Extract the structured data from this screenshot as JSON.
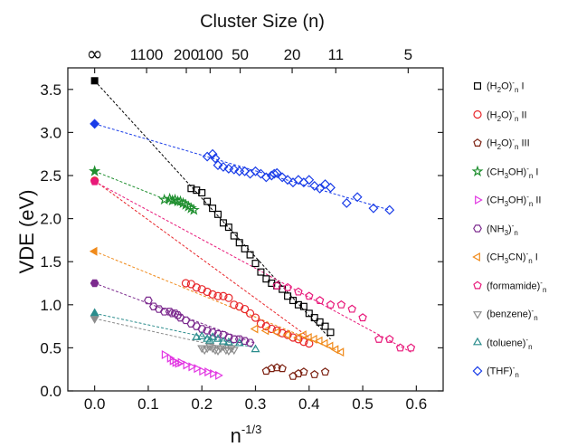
{
  "chart_data": {
    "type": "scatter",
    "title": "Cluster Size (n)",
    "xlabel": "n",
    "xlabel_superscript": "-1/3",
    "ylabel": "VDE (eV)",
    "xlim": [
      -0.05,
      0.65
    ],
    "ylim": [
      0.0,
      3.75
    ],
    "x_ticks": [
      0.0,
      0.1,
      0.2,
      0.3,
      0.4,
      0.5,
      0.6
    ],
    "x_tick_labels": [
      "0.0",
      "0.1",
      "0.2",
      "0.3",
      "0.4",
      "0.5",
      "0.6"
    ],
    "y_ticks": [
      0.0,
      0.5,
      1.0,
      1.5,
      2.0,
      2.5,
      3.0,
      3.5
    ],
    "y_tick_labels": [
      "0.0",
      "0.5",
      "1.0",
      "1.5",
      "2.0",
      "2.5",
      "3.0",
      "3.5"
    ],
    "top_axis": {
      "ticks": [
        {
          "label": "∞",
          "x": 0.0
        },
        {
          "label": "1100",
          "x": 0.0969
        },
        {
          "label": "200",
          "x": 0.171
        },
        {
          "label": "100",
          "x": 0.2154
        },
        {
          "label": "50",
          "x": 0.2714
        },
        {
          "label": "20",
          "x": 0.3684
        },
        {
          "label": "11",
          "x": 0.4498
        },
        {
          "label": "5",
          "x": 0.5848
        }
      ]
    },
    "grid": false,
    "legend_position": "right",
    "series": [
      {
        "name_html": "(H<sub>2</sub>O)<sup>-</sup><sub>n</sub> I",
        "marker": "square",
        "color": "#000000",
        "x": [
          0.18,
          0.19,
          0.2,
          0.21,
          0.22,
          0.23,
          0.24,
          0.25,
          0.26,
          0.27,
          0.28,
          0.29,
          0.3,
          0.31,
          0.32,
          0.33,
          0.34,
          0.35,
          0.36,
          0.37,
          0.38,
          0.39,
          0.4,
          0.41,
          0.42,
          0.43,
          0.44
        ],
        "y": [
          2.35,
          2.33,
          2.3,
          2.2,
          2.12,
          2.05,
          1.95,
          1.9,
          1.8,
          1.72,
          1.65,
          1.58,
          1.48,
          1.38,
          1.3,
          1.25,
          1.22,
          1.18,
          1.1,
          1.05,
          1.0,
          0.98,
          0.9,
          0.85,
          0.8,
          0.75,
          0.68
        ],
        "extrap": {
          "x": 0.0,
          "y": 3.6
        },
        "fit": [
          [
            0.0,
            3.6
          ],
          [
            0.44,
            0.6
          ]
        ]
      },
      {
        "name_html": "(H<sub>2</sub>O)<sup>-</sup><sub>n</sub> II",
        "marker": "circle",
        "color": "#e8262a",
        "x": [
          0.17,
          0.18,
          0.19,
          0.2,
          0.21,
          0.22,
          0.23,
          0.24,
          0.25,
          0.26,
          0.27,
          0.28,
          0.29,
          0.3,
          0.31,
          0.32,
          0.33,
          0.34,
          0.35,
          0.36,
          0.37,
          0.38,
          0.39,
          0.4
        ],
        "y": [
          1.25,
          1.24,
          1.2,
          1.18,
          1.15,
          1.12,
          1.1,
          1.1,
          1.08,
          1.0,
          0.98,
          0.95,
          0.9,
          0.85,
          0.78,
          0.75,
          0.72,
          0.7,
          0.67,
          0.65,
          0.62,
          0.6,
          0.57,
          0.55
        ],
        "extrap": {
          "x": 0.0,
          "y": 2.44
        },
        "fit": [
          [
            0.0,
            2.44
          ],
          [
            0.4,
            0.62
          ]
        ]
      },
      {
        "name_html": "(H<sub>2</sub>O)<sup>-</sup><sub>n</sub> III",
        "marker": "pentagon",
        "color": "#7b1f0f",
        "x": [
          0.32,
          0.33,
          0.34,
          0.35,
          0.37,
          0.38,
          0.39,
          0.41,
          0.43
        ],
        "y": [
          0.23,
          0.26,
          0.27,
          0.26,
          0.17,
          0.2,
          0.22,
          0.19,
          0.22
        ],
        "extrap": null,
        "fit": null
      },
      {
        "name_html": "(CH<sub>3</sub>OH)<sup>-</sup><sub>n</sub> I",
        "marker": "star",
        "color": "#1f8f2f",
        "x": [
          0.13,
          0.14,
          0.145,
          0.15,
          0.155,
          0.16,
          0.165,
          0.17,
          0.175,
          0.18,
          0.185
        ],
        "y": [
          2.22,
          2.23,
          2.21,
          2.22,
          2.2,
          2.2,
          2.18,
          2.16,
          2.14,
          2.12,
          2.1
        ],
        "extrap": {
          "x": 0.0,
          "y": 2.55
        },
        "fit": [
          [
            0.0,
            2.55
          ],
          [
            0.19,
            2.08
          ]
        ]
      },
      {
        "name_html": "(CH<sub>3</sub>OH)<sup>-</sup><sub>n</sub> II",
        "marker": "triangle-right",
        "color": "#e236e2",
        "x": [
          0.13,
          0.14,
          0.145,
          0.15,
          0.155,
          0.16,
          0.17,
          0.18,
          0.19,
          0.2,
          0.21,
          0.22,
          0.23
        ],
        "y": [
          0.42,
          0.38,
          0.35,
          0.33,
          0.32,
          0.33,
          0.3,
          0.28,
          0.26,
          0.23,
          0.22,
          0.2,
          0.18
        ],
        "extrap": null,
        "fit": null
      },
      {
        "name_html": "(NH<sub>3</sub>)<sup>-</sup><sub>n</sub>",
        "marker": "hexagon",
        "color": "#7c2a8e",
        "x": [
          0.1,
          0.11,
          0.12,
          0.13,
          0.14,
          0.145,
          0.15,
          0.155,
          0.16,
          0.17,
          0.18,
          0.19,
          0.2,
          0.21,
          0.22,
          0.23,
          0.24,
          0.25,
          0.26,
          0.27,
          0.28,
          0.29
        ],
        "y": [
          1.05,
          0.98,
          0.95,
          0.92,
          0.92,
          0.9,
          0.9,
          0.88,
          0.85,
          0.82,
          0.78,
          0.75,
          0.72,
          0.7,
          0.68,
          0.66,
          0.65,
          0.62,
          0.6,
          0.6,
          0.58,
          0.56
        ],
        "extrap": {
          "x": 0.0,
          "y": 1.25
        },
        "fit": [
          [
            0.0,
            1.25
          ],
          [
            0.3,
            0.55
          ]
        ]
      },
      {
        "name_html": "(CH<sub>3</sub>CN)<sup>-</sup><sub>n</sub> I",
        "marker": "triangle-left",
        "color": "#f08a1a",
        "x": [
          0.3,
          0.32,
          0.34,
          0.36,
          0.38,
          0.39,
          0.4,
          0.41,
          0.42,
          0.43,
          0.44,
          0.45,
          0.46
        ],
        "y": [
          0.72,
          0.7,
          0.68,
          0.65,
          0.62,
          0.65,
          0.62,
          0.6,
          0.58,
          0.55,
          0.52,
          0.48,
          0.45
        ],
        "extrap": {
          "x": 0.0,
          "y": 1.62
        },
        "fit": [
          [
            0.0,
            1.62
          ],
          [
            0.46,
            0.45
          ]
        ]
      },
      {
        "name_html": "(formamide)<sup>-</sup><sub>n</sub>",
        "marker": "pentagon",
        "color": "#e8197a",
        "x": [
          0.34,
          0.36,
          0.38,
          0.4,
          0.42,
          0.44,
          0.46,
          0.48,
          0.5,
          0.53,
          0.55,
          0.57,
          0.59
        ],
        "y": [
          1.22,
          1.2,
          1.15,
          1.1,
          1.05,
          1.0,
          1.0,
          0.95,
          0.85,
          0.6,
          0.6,
          0.5,
          0.5
        ],
        "extrap": {
          "x": 0.0,
          "y": 2.43
        },
        "fit": [
          [
            0.0,
            2.43
          ],
          [
            0.59,
            0.45
          ]
        ]
      },
      {
        "name_html": "(benzene)<sup>-</sup><sub>n</sub>",
        "marker": "triangle-down",
        "color": "#8c8c8c",
        "x": [
          0.2,
          0.205,
          0.21,
          0.215,
          0.22,
          0.225,
          0.23,
          0.235,
          0.24,
          0.245,
          0.25,
          0.255,
          0.26
        ],
        "y": [
          0.5,
          0.48,
          0.5,
          0.52,
          0.5,
          0.48,
          0.47,
          0.5,
          0.52,
          0.48,
          0.47,
          0.5,
          0.48
        ],
        "extrap": {
          "x": 0.0,
          "y": 0.84
        },
        "fit": [
          [
            0.0,
            0.84
          ],
          [
            0.26,
            0.48
          ]
        ]
      },
      {
        "name_html": "(toluene)<sup>-</sup><sub>n</sub>",
        "marker": "triangle-up",
        "color": "#2a8c8c",
        "x": [
          0.19,
          0.2,
          0.21,
          0.215,
          0.22,
          0.23,
          0.24,
          0.25,
          0.27,
          0.3
        ],
        "y": [
          0.62,
          0.63,
          0.6,
          0.58,
          0.62,
          0.6,
          0.57,
          0.56,
          0.55,
          0.48
        ],
        "extrap": {
          "x": 0.0,
          "y": 0.9
        },
        "fit": [
          [
            0.0,
            0.9
          ],
          [
            0.3,
            0.5
          ]
        ]
      },
      {
        "name_html": "(THF)<sup>-</sup><sub>n</sub>",
        "marker": "diamond",
        "color": "#1a3de8",
        "x": [
          0.21,
          0.22,
          0.225,
          0.23,
          0.24,
          0.25,
          0.26,
          0.27,
          0.28,
          0.29,
          0.3,
          0.31,
          0.32,
          0.33,
          0.335,
          0.34,
          0.35,
          0.36,
          0.37,
          0.38,
          0.39,
          0.4,
          0.41,
          0.42,
          0.43,
          0.44,
          0.47,
          0.49,
          0.52,
          0.55
        ],
        "y": [
          2.72,
          2.75,
          2.7,
          2.62,
          2.6,
          2.58,
          2.57,
          2.55,
          2.55,
          2.52,
          2.55,
          2.52,
          2.48,
          2.5,
          2.52,
          2.53,
          2.48,
          2.45,
          2.42,
          2.45,
          2.42,
          2.45,
          2.38,
          2.35,
          2.4,
          2.36,
          2.18,
          2.25,
          2.12,
          2.1
        ],
        "extrap": {
          "x": 0.0,
          "y": 3.1
        },
        "fit": [
          [
            0.0,
            3.1
          ],
          [
            0.55,
            2.1
          ]
        ]
      }
    ]
  }
}
